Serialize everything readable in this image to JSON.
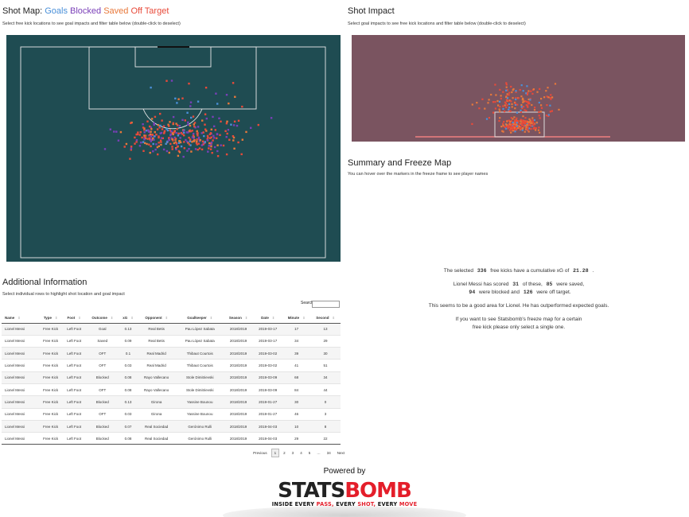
{
  "shot_map": {
    "title_prefix": "Shot Map:",
    "legend": {
      "goals": "Goals",
      "blocked": "Blocked",
      "saved": "Saved",
      "off_target": "Off Target"
    },
    "subtitle": "Select free kick locations to see goal impacts and filter table below (double-click to deselect)"
  },
  "shot_impact": {
    "title": "Shot Impact",
    "subtitle": "Select goal impacts to see free kick locations and filter table below (double-click to deselect)"
  },
  "summary": {
    "title": "Summary and Freeze Map",
    "subtitle": "You can hover over the markers in the freeze frame to see player names",
    "line1_a": "The selected",
    "count": "336",
    "line1_b": "free kicks have a cumulative xG of",
    "xg": "21.28",
    "line1_c": ".",
    "line2_a": "Lionel Messi has scored",
    "goals": "31",
    "line2_b": "of these,",
    "saved": "85",
    "line2_c": "were saved,",
    "blocked": "94",
    "line3_a": "were blocked and",
    "off_target": "126",
    "line3_b": "were off target.",
    "line4": "This seems to be a good area for Lionel. He has outperformed expected goals.",
    "line5": "If you want to see Statsbomb's freeze map for a certain",
    "line6": "free kick please only select a single one."
  },
  "additional": {
    "title": "Additional Information",
    "subtitle": "Select individual rows to highlight shot location and goal impact",
    "search_label": "Search:"
  },
  "table": {
    "headers": [
      "Name",
      "Type",
      "Foot",
      "Outcome",
      "xG",
      "Opponent",
      "Goalkeeper",
      "Season",
      "Date",
      "Minute",
      "Second"
    ],
    "rows": [
      [
        "Lionel Messi",
        "Free Kick",
        "Left Foot",
        "Goal",
        "0.13",
        "Real Betis",
        "Pau López Sabata",
        "2018/2019",
        "2019-03-17",
        "17",
        "13"
      ],
      [
        "Lionel Messi",
        "Free Kick",
        "Left Foot",
        "Saved",
        "0.09",
        "Real Betis",
        "Pau López Sabata",
        "2018/2019",
        "2019-03-17",
        "34",
        "29"
      ],
      [
        "Lionel Messi",
        "Free Kick",
        "Left Foot",
        "OFT",
        "0.1",
        "Real Madrid",
        "Thibaut Courtois",
        "2018/2019",
        "2019-03-02",
        "39",
        "30"
      ],
      [
        "Lionel Messi",
        "Free Kick",
        "Left Foot",
        "OFT",
        "0.03",
        "Real Madrid",
        "Thibaut Courtois",
        "2018/2019",
        "2019-03-02",
        "41",
        "51"
      ],
      [
        "Lionel Messi",
        "Free Kick",
        "Left Foot",
        "Blocked",
        "0.08",
        "Rayo Vallecano",
        "Stole Dimitrievski",
        "2018/2019",
        "2019-03-09",
        "68",
        "34"
      ],
      [
        "Lionel Messi",
        "Free Kick",
        "Left Foot",
        "OFT",
        "0.08",
        "Rayo Vallecano",
        "Stole Dimitrievski",
        "2018/2019",
        "2019-03-09",
        "84",
        "44"
      ],
      [
        "Lionel Messi",
        "Free Kick",
        "Left Foot",
        "Blocked",
        "0.13",
        "Girona",
        "Yassine Bounou",
        "2018/2019",
        "2019-01-27",
        "30",
        "0"
      ],
      [
        "Lionel Messi",
        "Free Kick",
        "Left Foot",
        "OFT",
        "0.03",
        "Girona",
        "Yassine Bounou",
        "2018/2019",
        "2019-01-27",
        "46",
        "3"
      ],
      [
        "Lionel Messi",
        "Free Kick",
        "Left Foot",
        "Blocked",
        "0.07",
        "Real Sociedad",
        "Gerónimo Rulli",
        "2018/2019",
        "2019-04-03",
        "10",
        "8"
      ],
      [
        "Lionel Messi",
        "Free Kick",
        "Left Foot",
        "Blocked",
        "0.08",
        "Real Sociedad",
        "Gerónimo Rulli",
        "2018/2019",
        "2019-04-03",
        "29",
        "22"
      ]
    ]
  },
  "pager": {
    "previous": "Previous",
    "pages": [
      "1",
      "2",
      "3",
      "4",
      "5",
      "…",
      "34"
    ],
    "next": "Next"
  },
  "footer": {
    "powered_by": "Powered by",
    "logo_a": "STATS",
    "logo_b": "BOMB",
    "tag_a": "INSIDE EVERY",
    "tag_b": "PASS,",
    "tag_c": "EVERY",
    "tag_d": "SHOT,",
    "tag_e": "EVERY",
    "tag_f": "MOVE"
  },
  "colors": {
    "pitch": "#1f4c52",
    "impact_bg": "#7a5460",
    "goal": "#4a90d9",
    "blocked": "#7a3fb8",
    "saved": "#e8783a",
    "off_target": "#e84a3a",
    "brand_red": "#e41e2a"
  }
}
